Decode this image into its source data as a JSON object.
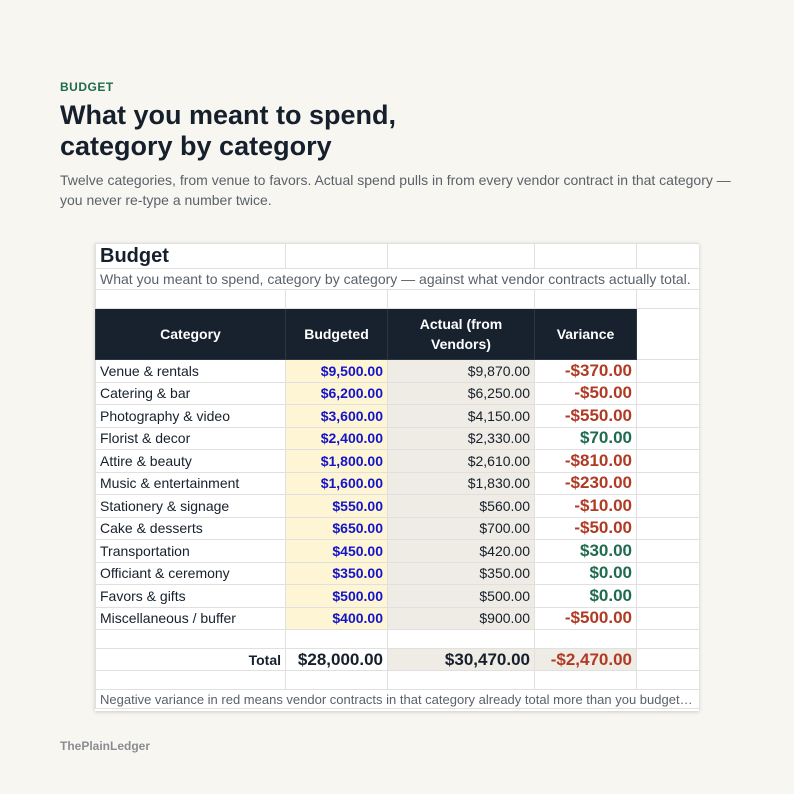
{
  "header": {
    "eyebrow": "BUDGET",
    "title_line1": "What you meant to spend,",
    "title_line2": "category by category",
    "subtitle": "Twelve categories, from venue to favors. Actual spend pulls in from every vendor contract in that category — you never re-type a number twice."
  },
  "sheet": {
    "title": "Budget",
    "description": "What you meant to spend, category by category — against what vendor contracts actually total.",
    "columns": [
      "Category",
      "Budgeted",
      "Actual (from Vendors)",
      "Variance"
    ],
    "rows": [
      {
        "category": "Venue & rentals",
        "budgeted": "$9,500.00",
        "actual": "$9,870.00",
        "variance": "-$370.00",
        "status": "neg"
      },
      {
        "category": "Catering & bar",
        "budgeted": "$6,200.00",
        "actual": "$6,250.00",
        "variance": "-$50.00",
        "status": "neg"
      },
      {
        "category": "Photography & video",
        "budgeted": "$3,600.00",
        "actual": "$4,150.00",
        "variance": "-$550.00",
        "status": "neg"
      },
      {
        "category": "Florist & decor",
        "budgeted": "$2,400.00",
        "actual": "$2,330.00",
        "variance": "$70.00",
        "status": "pos"
      },
      {
        "category": "Attire & beauty",
        "budgeted": "$1,800.00",
        "actual": "$2,610.00",
        "variance": "-$810.00",
        "status": "neg"
      },
      {
        "category": "Music & entertainment",
        "budgeted": "$1,600.00",
        "actual": "$1,830.00",
        "variance": "-$230.00",
        "status": "neg"
      },
      {
        "category": "Stationery & signage",
        "budgeted": "$550.00",
        "actual": "$560.00",
        "variance": "-$10.00",
        "status": "neg"
      },
      {
        "category": "Cake & desserts",
        "budgeted": "$650.00",
        "actual": "$700.00",
        "variance": "-$50.00",
        "status": "neg"
      },
      {
        "category": "Transportation",
        "budgeted": "$450.00",
        "actual": "$420.00",
        "variance": "$30.00",
        "status": "pos"
      },
      {
        "category": "Officiant & ceremony",
        "budgeted": "$350.00",
        "actual": "$350.00",
        "variance": "$0.00",
        "status": "pos"
      },
      {
        "category": "Favors & gifts",
        "budgeted": "$500.00",
        "actual": "$500.00",
        "variance": "$0.00",
        "status": "pos"
      },
      {
        "category": "Miscellaneous / buffer",
        "budgeted": "$400.00",
        "actual": "$900.00",
        "variance": "-$500.00",
        "status": "neg"
      }
    ],
    "total": {
      "label": "Total",
      "budgeted": "$28,000.00",
      "actual": "$30,470.00",
      "variance": "-$2,470.00"
    },
    "note": "Negative variance in red means vendor contracts in that category already total more than you budgeted."
  },
  "colors": {
    "negative": "#b03a24",
    "positive": "#1e6b4e",
    "budgeted_text": "#1414c8",
    "budgeted_fill": "#fdf5d3",
    "actual_fill": "#efebe5",
    "header_fill": "#17222e"
  },
  "footer": {
    "brand": "ThePlainLedger"
  }
}
